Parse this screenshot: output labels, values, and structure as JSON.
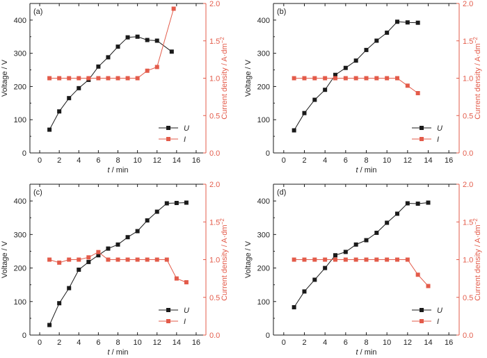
{
  "colors": {
    "voltage": "#1a1a1a",
    "current": "#e35b4a",
    "axis": "#1a1a1a"
  },
  "chart_data": [
    {
      "panel_label": "(a)",
      "type": "line",
      "xlabel_var": "t",
      "xlabel_unit": " / min",
      "ylabel_left": "Voltage / V",
      "ylabel_right_text": "Current density / A·dm",
      "ylabel_right_sup": "−2",
      "xlim": [
        -1,
        17
      ],
      "x_ticks": [
        0,
        2,
        4,
        6,
        8,
        10,
        12,
        14,
        16
      ],
      "ylim_left": [
        0,
        450
      ],
      "y_ticks_left": [
        0,
        100,
        200,
        300,
        400
      ],
      "ylim_right": [
        0,
        2.0
      ],
      "y_ticks_right": [
        "0.0",
        "0.5",
        "1.0",
        "1.5",
        "2.0"
      ],
      "legend_position": "bottom-right",
      "series": [
        {
          "name": "U",
          "axis": "left",
          "x": [
            1,
            2,
            3,
            4,
            5,
            6,
            7,
            8,
            9,
            10,
            11,
            12,
            13.5
          ],
          "values": [
            70,
            125,
            165,
            195,
            220,
            260,
            288,
            320,
            348,
            350,
            340,
            338,
            305
          ]
        },
        {
          "name": "I",
          "axis": "right",
          "x": [
            1,
            2,
            3,
            4,
            5,
            6,
            7,
            8,
            9,
            10,
            11,
            12,
            13.7
          ],
          "values": [
            1.0,
            1.0,
            1.0,
            1.0,
            1.0,
            1.0,
            1.0,
            1.0,
            1.0,
            1.0,
            1.1,
            1.15,
            1.93
          ]
        }
      ]
    },
    {
      "panel_label": "(b)",
      "type": "line",
      "xlabel_var": "t",
      "xlabel_unit": " / min",
      "ylabel_left": "Voltage / V",
      "ylabel_right_text": "Current density / A·dm",
      "ylabel_right_sup": "−2",
      "xlim": [
        -1,
        17
      ],
      "x_ticks": [
        0,
        2,
        4,
        6,
        8,
        10,
        12,
        14,
        16
      ],
      "ylim_left": [
        0,
        450
      ],
      "y_ticks_left": [
        0,
        100,
        200,
        300,
        400
      ],
      "ylim_right": [
        0,
        2.0
      ],
      "y_ticks_right": [
        "0.0",
        "0.5",
        "1.0",
        "1.5",
        "2.0"
      ],
      "legend_position": "bottom-right",
      "series": [
        {
          "name": "U",
          "axis": "left",
          "x": [
            1,
            2,
            3,
            4,
            5,
            6,
            7,
            8,
            9,
            10,
            11,
            12,
            13
          ],
          "values": [
            68,
            120,
            160,
            190,
            235,
            256,
            278,
            310,
            338,
            362,
            395,
            393,
            392
          ]
        },
        {
          "name": "I",
          "axis": "right",
          "x": [
            1,
            2,
            3,
            4,
            5,
            6,
            7,
            8,
            9,
            10,
            11,
            12,
            13
          ],
          "values": [
            1.0,
            1.0,
            1.0,
            1.0,
            1.0,
            1.0,
            1.0,
            1.0,
            1.0,
            1.0,
            1.0,
            0.9,
            0.8
          ]
        }
      ]
    },
    {
      "panel_label": "(c)",
      "type": "line",
      "xlabel_var": "t",
      "xlabel_unit": " / min",
      "ylabel_left": "Voltage / V",
      "ylabel_right_text": "Current density / A·dm",
      "ylabel_right_sup": "−2",
      "xlim": [
        -1,
        17
      ],
      "x_ticks": [
        0,
        2,
        4,
        6,
        8,
        10,
        12,
        14,
        16
      ],
      "ylim_left": [
        0,
        450
      ],
      "y_ticks_left": [
        0,
        100,
        200,
        300,
        400
      ],
      "ylim_right": [
        0,
        2.0
      ],
      "y_ticks_right": [
        "0.0",
        "0.5",
        "1.0",
        "1.5",
        "2.0"
      ],
      "legend_position": "bottom-right",
      "series": [
        {
          "name": "U",
          "axis": "left",
          "x": [
            1,
            2,
            3,
            4,
            5,
            6,
            7,
            8,
            9,
            10,
            11,
            12,
            13,
            14,
            15
          ],
          "values": [
            30,
            95,
            140,
            195,
            218,
            238,
            258,
            270,
            292,
            310,
            342,
            368,
            393,
            394,
            395
          ]
        },
        {
          "name": "I",
          "axis": "right",
          "x": [
            1,
            2,
            3,
            4,
            5,
            6,
            7,
            8,
            9,
            10,
            11,
            12,
            13,
            14,
            15
          ],
          "values": [
            1.0,
            0.96,
            1.0,
            1.0,
            1.03,
            1.1,
            1.0,
            1.0,
            1.0,
            1.0,
            1.0,
            1.0,
            1.0,
            0.75,
            0.7
          ]
        }
      ]
    },
    {
      "panel_label": "(d)",
      "type": "line",
      "xlabel_var": "t",
      "xlabel_unit": " / min",
      "ylabel_left": "Voltage / V",
      "ylabel_right_text": "Current density / A·dm",
      "ylabel_right_sup": "−2",
      "xlim": [
        -1,
        17
      ],
      "x_ticks": [
        0,
        2,
        4,
        6,
        8,
        10,
        12,
        14,
        16
      ],
      "ylim_left": [
        0,
        450
      ],
      "y_ticks_left": [
        0,
        100,
        200,
        300,
        400
      ],
      "ylim_right": [
        0,
        2.0
      ],
      "y_ticks_right": [
        "0.0",
        "0.5",
        "1.0",
        "1.5",
        "2.0"
      ],
      "legend_position": "bottom-right",
      "series": [
        {
          "name": "U",
          "axis": "left",
          "x": [
            1,
            2,
            3,
            4,
            5,
            6,
            7,
            8,
            9,
            10,
            11,
            12,
            13,
            14
          ],
          "values": [
            83,
            130,
            165,
            200,
            238,
            248,
            270,
            283,
            305,
            335,
            362,
            393,
            392,
            395
          ]
        },
        {
          "name": "I",
          "axis": "right",
          "x": [
            1,
            2,
            3,
            4,
            5,
            6,
            7,
            8,
            9,
            10,
            11,
            12,
            13,
            14
          ],
          "values": [
            1.0,
            1.0,
            1.0,
            1.0,
            1.0,
            1.0,
            1.0,
            1.0,
            1.0,
            1.0,
            1.0,
            1.0,
            0.8,
            0.65
          ]
        }
      ]
    }
  ]
}
